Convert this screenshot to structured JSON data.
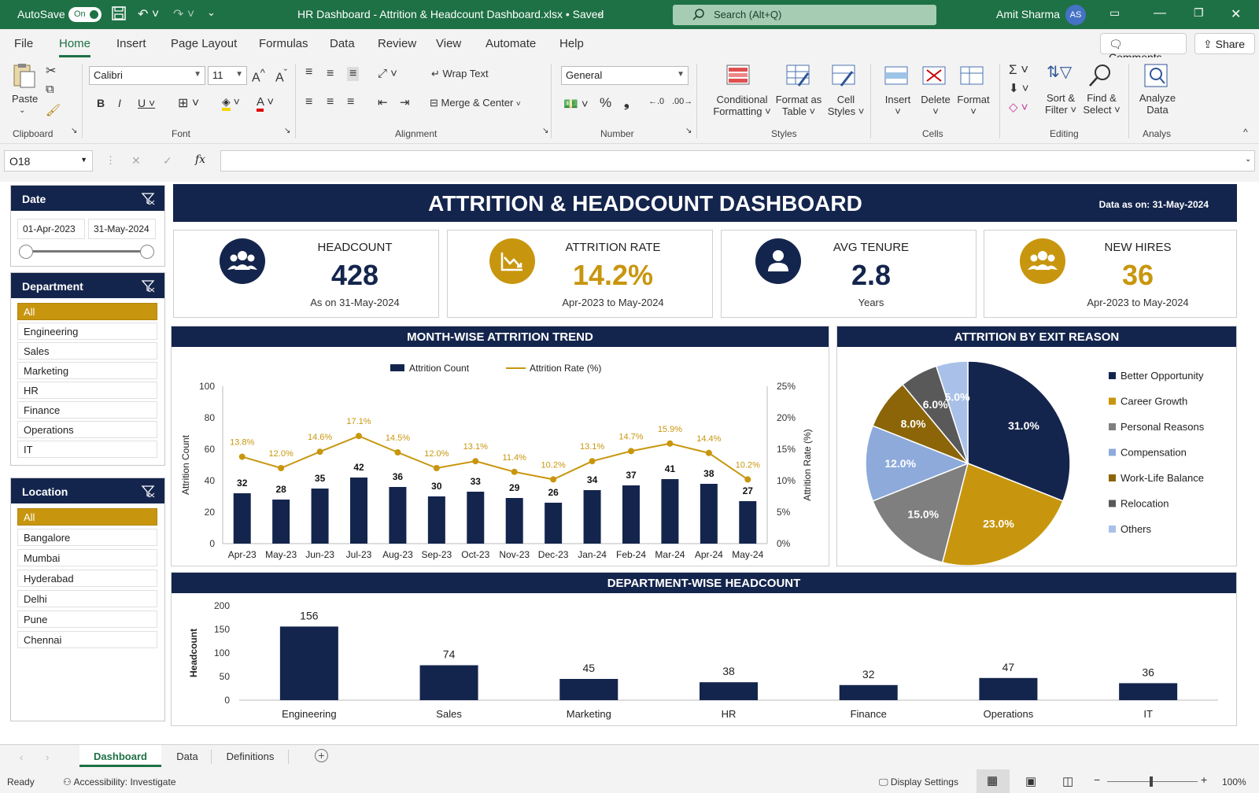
{
  "titlebar": {
    "autosave_label": "AutoSave",
    "autosave_state": "On",
    "doc_title": "HR Dashboard - Attrition & Headcount Dashboard.xlsx • Saved",
    "search_placeholder": "Search (Alt+Q)",
    "user_name": "Amit Sharma",
    "user_initials": "AS"
  },
  "menu": {
    "tabs": [
      "File",
      "Home",
      "Insert",
      "Page Layout",
      "Formulas",
      "Data",
      "Review",
      "View",
      "Automate",
      "Help"
    ],
    "comments": "Comments",
    "share": "Share"
  },
  "ribbon": {
    "paste": "Paste",
    "clipboard": "Clipboard",
    "font_name": "Calibri",
    "font_size": "11",
    "font_group": "Font",
    "wrap_text": "Wrap Text",
    "merge_center": "Merge & Center",
    "alignment": "Alignment",
    "number_format": "General",
    "number": "Number",
    "conditional": "Conditional",
    "formatting": "Formatting",
    "format_as": "Format as",
    "table": "Table",
    "cell": "Cell",
    "styles_lbl": "Styles",
    "styles": "Styles",
    "insert": "Insert",
    "delete": "Delete",
    "format": "Format",
    "cells": "Cells",
    "sort": "Sort &",
    "filter": "Filter",
    "find": "Find &",
    "select": "Select",
    "editing": "Editing",
    "analyze": "Analyze",
    "data": "Data",
    "analys": "Analys"
  },
  "formula_bar": {
    "name_box": "O18",
    "fx": "fx"
  },
  "dashboard": {
    "title": "ATTRITION & HEADCOUNT DASHBOARD",
    "data_as_on": "Data as on: 31-May-2024",
    "kpis": [
      {
        "title": "HEADCOUNT",
        "value": "428",
        "sub": "As on 31-May-2024",
        "icon": "people-icon",
        "color": "#14254d"
      },
      {
        "title": "ATTRITION RATE",
        "value": "14.2%",
        "sub": "Apr-2023 to May-2024",
        "icon": "chart-down-icon",
        "color": "#c8960e"
      },
      {
        "title": "AVG TENURE",
        "value": "2.8",
        "sub": "Years",
        "icon": "person-icon",
        "color": "#14254d"
      },
      {
        "title": "NEW HIRES",
        "value": "36",
        "sub": "Apr-2023 to May-2024",
        "icon": "people-icon",
        "color": "#c8960e"
      }
    ],
    "trend_title": "MONTH-WISE ATTRITION TREND",
    "exit_title": "ATTRITION BY EXIT REASON",
    "dept_title": "DEPARTMENT-WISE HEADCOUNT"
  },
  "slicers": {
    "date": {
      "title": "Date",
      "from": "01-Apr-2023",
      "to": "31-May-2024"
    },
    "department": {
      "title": "Department",
      "items": [
        "All",
        "Engineering",
        "Sales",
        "Marketing",
        "HR",
        "Finance",
        "Operations",
        "IT"
      ],
      "selected": "All"
    },
    "location": {
      "title": "Location",
      "items": [
        "All",
        "Bangalore",
        "Mumbai",
        "Hyderabad",
        "Delhi",
        "Pune",
        "Chennai"
      ],
      "selected": "All"
    }
  },
  "chart_data": [
    {
      "type": "bar",
      "title": "MONTH-WISE ATTRITION TREND",
      "categories": [
        "Apr-23",
        "May-23",
        "Jun-23",
        "Jul-23",
        "Aug-23",
        "Sep-23",
        "Oct-23",
        "Nov-23",
        "Dec-23",
        "Jan-24",
        "Feb-24",
        "Mar-24",
        "Apr-24",
        "May-24"
      ],
      "series": [
        {
          "name": "Attrition Count",
          "type": "bar",
          "axis": "left",
          "values": [
            32,
            28,
            35,
            42,
            36,
            30,
            33,
            29,
            26,
            34,
            37,
            41,
            38,
            27
          ],
          "color": "#14254d"
        },
        {
          "name": "Attrition Rate (%)",
          "type": "line",
          "axis": "right",
          "values": [
            13.8,
            12.0,
            14.6,
            17.1,
            14.5,
            12.0,
            13.1,
            11.4,
            10.2,
            13.1,
            14.7,
            15.9,
            14.4,
            10.2
          ],
          "color": "#c8960e"
        }
      ],
      "ylabel": "Attrition Count",
      "y2label": "Attrition Rate (%)",
      "ylim": [
        0,
        100
      ],
      "y2lim": [
        0,
        25
      ],
      "yticks": [
        "0",
        "20",
        "40",
        "60",
        "80",
        "100"
      ],
      "y2ticks": [
        "0%",
        "5%",
        "10%",
        "15%",
        "20%",
        "25%"
      ],
      "legend": "top",
      "grid": false
    },
    {
      "type": "pie",
      "title": "ATTRITION BY EXIT REASON",
      "labels": [
        "Better Opportunity",
        "Career Growth",
        "Personal Reasons",
        "Compensation",
        "Work-Life Balance",
        "Relocation",
        "Others"
      ],
      "values": [
        31.0,
        23.0,
        15.0,
        12.0,
        8.0,
        6.0,
        5.0
      ],
      "colors": [
        "#14254d",
        "#c8960e",
        "#7f7f7f",
        "#8eaadb",
        "#8b6508",
        "#595959",
        "#a9c1e8"
      ],
      "legend": "right"
    },
    {
      "type": "bar",
      "title": "DEPARTMENT-WISE HEADCOUNT",
      "categories": [
        "Engineering",
        "Sales",
        "Marketing",
        "HR",
        "Finance",
        "Operations",
        "IT"
      ],
      "values": [
        156,
        74,
        45,
        38,
        32,
        47,
        36
      ],
      "ylabel": "Headcount",
      "ylim": [
        0,
        200
      ],
      "yticks": [
        "0",
        "50",
        "100",
        "150",
        "200"
      ],
      "color": "#14254d"
    }
  ],
  "sheet_tabs": [
    "Dashboard",
    "Data",
    "Definitions"
  ],
  "status": {
    "ready": "Ready",
    "accessibility": "Accessibility: Investigate",
    "display_settings": "Display Settings",
    "zoom": "100%"
  }
}
